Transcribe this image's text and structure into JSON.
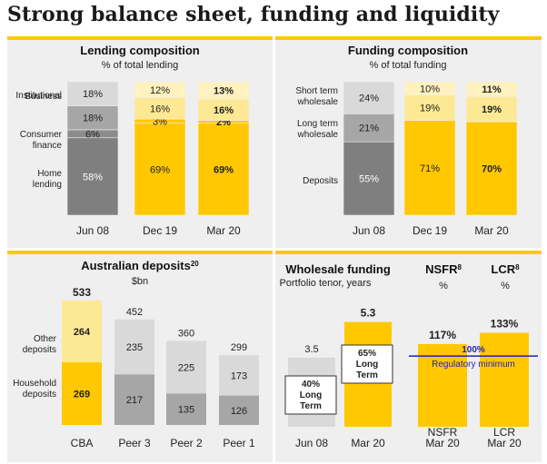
{
  "page": {
    "title": "Strong balance sheet, funding and liquidity"
  },
  "colors": {
    "accent": "#ffc800",
    "yellow": "#ffc800",
    "pale_yellow": "#fde994",
    "dark_grey": "#7f7f7f",
    "mid_grey": "#a6a6a6",
    "light_grey": "#d9d9d9",
    "line_blue": "#1f1fbf"
  },
  "chart_data": [
    {
      "type": "bar",
      "stacked": true,
      "title": "Lending composition",
      "subtitle": "% of total lending",
      "categories": [
        "Jun 08",
        "Dec 19",
        "Mar 20"
      ],
      "series": [
        {
          "name": "Home lending",
          "values": [
            58,
            69,
            69
          ]
        },
        {
          "name": "Consumer finance",
          "values": [
            6,
            3,
            2
          ]
        },
        {
          "name": "Business",
          "values": [
            18,
            16,
            16
          ]
        },
        {
          "name": "Institutional",
          "values": [
            18,
            12,
            13
          ]
        }
      ],
      "value_labels": [
        [
          "58%",
          "6%",
          "18%",
          "18%"
        ],
        [
          "69%",
          "3%",
          "16%",
          "12%"
        ],
        [
          "69%",
          "2%",
          "16%",
          "13%"
        ]
      ],
      "bold_category": "Mar 20",
      "ylim": [
        0,
        100
      ]
    },
    {
      "type": "bar",
      "stacked": true,
      "title": "Funding composition",
      "subtitle": "% of total funding",
      "categories": [
        "Jun 08",
        "Dec 19",
        "Mar 20"
      ],
      "series": [
        {
          "name": "Deposits",
          "values": [
            55,
            71,
            70
          ]
        },
        {
          "name": "Long term wholesale",
          "values": [
            21,
            19,
            19
          ]
        },
        {
          "name": "Short term wholesale",
          "values": [
            24,
            10,
            11
          ]
        }
      ],
      "value_labels": [
        [
          "55%",
          "21%",
          "24%"
        ],
        [
          "71%",
          "19%",
          "10%"
        ],
        [
          "70%",
          "19%",
          "11%"
        ]
      ],
      "bold_category": "Mar 20",
      "ylim": [
        0,
        100
      ]
    },
    {
      "type": "bar",
      "stacked": true,
      "title": "Australian deposits",
      "title_superscript": "20",
      "subtitle": "$bn",
      "categories": [
        "CBA",
        "Peer 3",
        "Peer 2",
        "Peer 1"
      ],
      "series": [
        {
          "name": "Household deposits",
          "values": [
            269,
            217,
            135,
            126
          ]
        },
        {
          "name": "Other deposits",
          "values": [
            264,
            235,
            225,
            173
          ]
        }
      ],
      "totals": [
        533,
        452,
        360,
        299
      ],
      "ylim": [
        0,
        560
      ]
    },
    {
      "type": "bar",
      "title": "Wholesale funding",
      "subtitle": "Portfolio tenor, years",
      "categories": [
        "Jun 08",
        "Mar 20"
      ],
      "values": [
        3.5,
        5.3
      ],
      "value_labels": [
        "3.5",
        "5.3"
      ],
      "annotations": [
        "40% Long Term",
        "65% Long Term"
      ],
      "ylim": [
        0,
        5.6
      ]
    },
    {
      "type": "bar",
      "headers": [
        {
          "title": "NSFR",
          "superscript": "8",
          "subtitle": "%"
        },
        {
          "title": "LCR",
          "superscript": "8",
          "subtitle": "%"
        }
      ],
      "categories": [
        "NSFR Mar 20",
        "LCR Mar 20"
      ],
      "category_lines": [
        [
          "NSFR",
          "Mar 20"
        ],
        [
          "LCR",
          "Mar 20"
        ]
      ],
      "values": [
        117,
        133
      ],
      "value_labels": [
        "117%",
        "133%"
      ],
      "reference_line": {
        "value": 100,
        "label": "100%",
        "note": "Regulatory minimum"
      },
      "ylim": [
        0,
        140
      ]
    }
  ]
}
